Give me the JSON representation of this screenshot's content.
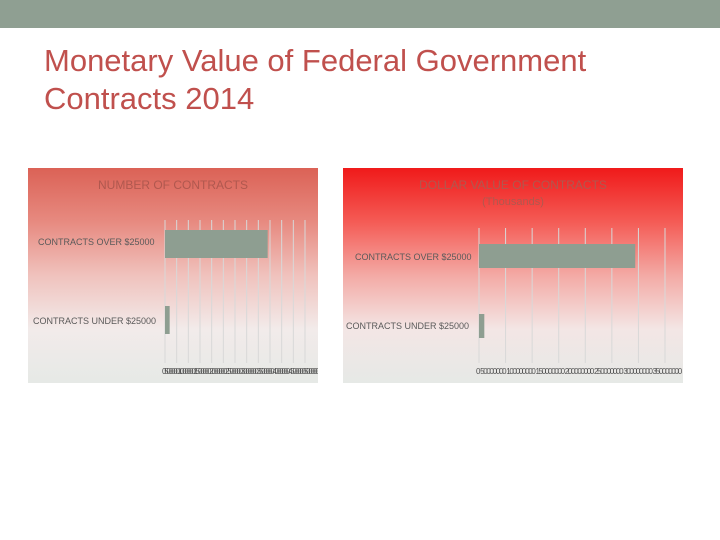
{
  "slide": {
    "title_line1": "Monetary Value of Federal Government",
    "title_line2": "Contracts 2014",
    "title_color": "#c0504d",
    "top_bar_color": "#8f9f92"
  },
  "chart_data": [
    {
      "type": "bar",
      "orientation": "horizontal",
      "title": "NUMBER OF CONTRACTS",
      "categories": [
        "CONTRACTS OVER $25000",
        "CONTRACTS UNDER $25000"
      ],
      "values": [
        4400000,
        200000
      ],
      "xlim": [
        0,
        6000000
      ],
      "xtick_values": [
        0,
        500000,
        1000000,
        1500000,
        2000000,
        2500000,
        3000000,
        3500000,
        4000000,
        4500000,
        5000000,
        5500000,
        6000000
      ],
      "xtick_text": "0 500000 1000000 1500000 2000000 2500000 3000000 3500000 4000000 4500000 5000000 5500000 6000000",
      "bar_color": "#8e9e91",
      "grid": true
    },
    {
      "type": "bar",
      "orientation": "horizontal",
      "title": "DOLLAR VALUE OF CONTRACTS",
      "subtitle": "(Thousands)",
      "categories": [
        "CONTRACTS OVER $25000",
        "CONTRACTS UNDER $25000"
      ],
      "values": [
        294000000,
        10000000
      ],
      "xlim": [
        0,
        350000000
      ],
      "xtick_values": [
        0,
        50000000,
        100000000,
        150000000,
        200000000,
        250000000,
        300000000,
        350000000
      ],
      "xtick_text": "0 50000000 100000000 150000000 200000000 250000000 300000000 350000000",
      "bar_color": "#8e9e91",
      "grid": true
    }
  ]
}
